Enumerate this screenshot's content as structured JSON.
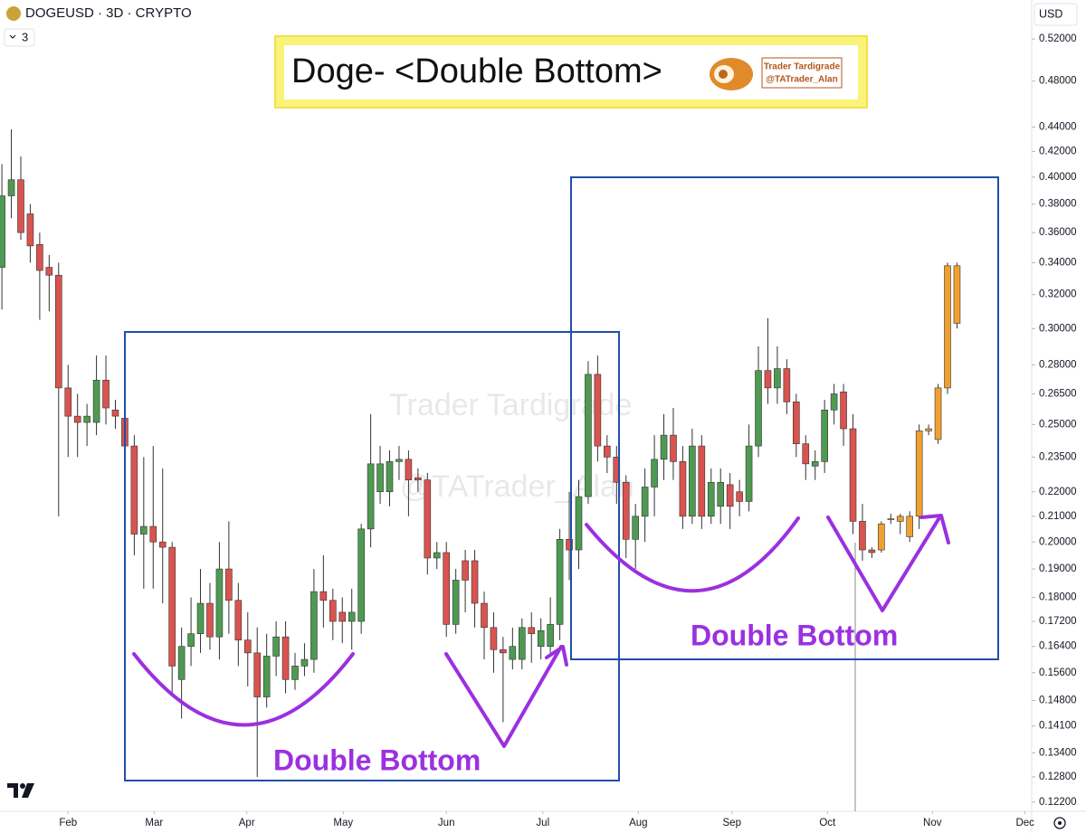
{
  "chart_data": {
    "type": "candlestick",
    "title": "DOGEUSD · 3D · CRYPTO",
    "interval": "3",
    "currency": "USD",
    "headline": "Doge- <Double Bottom>",
    "logo_name": "Trader Tardigrade",
    "logo_handle": "@TATrader_Alan",
    "watermark": [
      "Trader Tardigrade",
      "@TATrader_Alan"
    ],
    "pattern_labels": [
      "Double Bottom",
      "Double Bottom"
    ],
    "log_scale": true,
    "grid": false,
    "up_color": "#4e9a52",
    "down_color": "#d9534f",
    "candles": {
      "x": [
        0,
        1,
        2,
        3,
        4,
        5,
        6,
        7,
        8,
        9,
        10,
        11,
        12,
        13,
        14,
        15,
        16,
        17,
        18,
        19,
        20,
        21,
        22,
        23,
        24,
        25,
        26,
        27,
        28,
        29,
        30,
        31,
        32,
        33,
        34,
        35,
        36,
        37,
        38,
        39,
        40,
        41,
        42,
        43,
        44,
        45,
        46,
        47,
        48,
        49,
        50,
        51,
        52,
        53,
        54,
        55,
        56,
        57,
        58,
        59,
        60,
        61,
        62,
        63,
        64,
        65,
        66,
        67,
        68,
        69,
        70,
        71,
        72,
        73,
        74,
        75,
        76,
        77,
        78,
        79,
        80,
        81,
        82,
        83,
        84,
        85,
        86,
        87,
        88,
        89,
        90,
        91,
        92
      ],
      "open": [
        0.337,
        0.386,
        0.398,
        0.373,
        0.352,
        0.337,
        0.332,
        0.268,
        0.254,
        0.251,
        0.251,
        0.272,
        0.257,
        0.253,
        0.24,
        0.203,
        0.206,
        0.2,
        0.198,
        0.154,
        0.164,
        0.168,
        0.178,
        0.167,
        0.19,
        0.179,
        0.166,
        0.162,
        0.149,
        0.161,
        0.167,
        0.154,
        0.158,
        0.16,
        0.182,
        0.179,
        0.175,
        0.172,
        0.172,
        0.205,
        0.22,
        0.22,
        0.233,
        0.234,
        0.226,
        0.225,
        0.194,
        0.196,
        0.171,
        0.193,
        0.193,
        0.178,
        0.17,
        0.163,
        0.16,
        0.16,
        0.17,
        0.164,
        0.164,
        0.171,
        0.201,
        0.197,
        0.218,
        0.275,
        0.24,
        0.235,
        0.224,
        0.201,
        0.21,
        0.222,
        0.234,
        0.245,
        0.233,
        0.21,
        0.24,
        0.21,
        0.214,
        0.223,
        0.22,
        0.216,
        0.24,
        0.277,
        0.268,
        0.278,
        0.261,
        0.241,
        0.231,
        0.233,
        0.257,
        0.266,
        0.248,
        0.208,
        0.197
      ],
      "high": [
        0.41,
        0.438,
        0.416,
        0.38,
        0.36,
        0.345,
        0.34,
        0.28,
        0.265,
        0.26,
        0.285,
        0.285,
        0.262,
        0.258,
        0.245,
        0.235,
        0.24,
        0.23,
        0.2,
        0.17,
        0.18,
        0.19,
        0.185,
        0.2,
        0.208,
        0.185,
        0.175,
        0.17,
        0.168,
        0.172,
        0.172,
        0.162,
        0.165,
        0.19,
        0.195,
        0.183,
        0.18,
        0.183,
        0.207,
        0.255,
        0.24,
        0.238,
        0.24,
        0.238,
        0.23,
        0.228,
        0.2,
        0.2,
        0.19,
        0.197,
        0.197,
        0.182,
        0.175,
        0.167,
        0.17,
        0.173,
        0.175,
        0.173,
        0.18,
        0.205,
        0.22,
        0.225,
        0.282,
        0.285,
        0.245,
        0.24,
        0.227,
        0.215,
        0.23,
        0.245,
        0.255,
        0.258,
        0.24,
        0.248,
        0.245,
        0.23,
        0.23,
        0.228,
        0.225,
        0.25,
        0.29,
        0.306,
        0.29,
        0.283,
        0.265,
        0.245,
        0.238,
        0.262,
        0.27,
        0.27,
        0.255,
        0.215,
        0.198
      ],
      "low": [
        0.311,
        0.37,
        0.355,
        0.34,
        0.305,
        0.31,
        0.21,
        0.235,
        0.235,
        0.24,
        0.245,
        0.25,
        0.248,
        0.235,
        0.195,
        0.183,
        0.183,
        0.178,
        0.15,
        0.143,
        0.158,
        0.162,
        0.163,
        0.16,
        0.168,
        0.158,
        0.152,
        0.128,
        0.146,
        0.155,
        0.15,
        0.151,
        0.155,
        0.156,
        0.17,
        0.166,
        0.165,
        0.163,
        0.168,
        0.198,
        0.215,
        0.214,
        0.225,
        0.21,
        0.22,
        0.188,
        0.19,
        0.167,
        0.168,
        0.175,
        0.17,
        0.16,
        0.156,
        0.142,
        0.157,
        0.157,
        0.159,
        0.16,
        0.162,
        0.166,
        0.186,
        0.19,
        0.215,
        0.233,
        0.228,
        0.215,
        0.194,
        0.19,
        0.2,
        0.21,
        0.225,
        0.225,
        0.205,
        0.207,
        0.205,
        0.207,
        0.207,
        0.205,
        0.21,
        0.212,
        0.235,
        0.26,
        0.26,
        0.255,
        0.235,
        0.225,
        0.225,
        0.228,
        0.25,
        0.24,
        0.203,
        0.193,
        0.194
      ],
      "close": [
        0.386,
        0.398,
        0.36,
        0.351,
        0.335,
        0.332,
        0.268,
        0.254,
        0.251,
        0.254,
        0.272,
        0.258,
        0.254,
        0.24,
        0.203,
        0.206,
        0.2,
        0.198,
        0.158,
        0.164,
        0.168,
        0.178,
        0.167,
        0.19,
        0.179,
        0.166,
        0.162,
        0.149,
        0.161,
        0.167,
        0.154,
        0.158,
        0.16,
        0.182,
        0.179,
        0.172,
        0.172,
        0.175,
        0.205,
        0.232,
        0.232,
        0.233,
        0.234,
        0.225,
        0.225,
        0.194,
        0.196,
        0.171,
        0.186,
        0.186,
        0.178,
        0.17,
        0.163,
        0.162,
        0.164,
        0.17,
        0.168,
        0.169,
        0.171,
        0.201,
        0.197,
        0.218,
        0.275,
        0.24,
        0.235,
        0.224,
        0.201,
        0.21,
        0.222,
        0.234,
        0.245,
        0.233,
        0.21,
        0.24,
        0.21,
        0.224,
        0.224,
        0.214,
        0.216,
        0.24,
        0.277,
        0.268,
        0.278,
        0.261,
        0.241,
        0.232,
        0.233,
        0.257,
        0.265,
        0.248,
        0.208,
        0.197,
        0.196
      ]
    },
    "projection": {
      "color": "#f0a030",
      "x": [
        93,
        94,
        95,
        96,
        97,
        98,
        99,
        100,
        101
      ],
      "open": [
        0.207,
        0.209,
        0.208,
        0.202,
        0.21,
        0.247,
        0.243,
        0.268,
        0.338
      ],
      "high": [
        0.208,
        0.211,
        0.211,
        0.212,
        0.25,
        0.25,
        0.27,
        0.34,
        0.34
      ],
      "low": [
        0.196,
        0.207,
        0.203,
        0.2,
        0.205,
        0.245,
        0.241,
        0.265,
        0.3
      ],
      "close": [
        0.197,
        0.209,
        0.21,
        0.21,
        0.247,
        0.248,
        0.268,
        0.338,
        0.303
      ]
    },
    "xlim": [
      -0.2,
      108.9
    ],
    "xticks": [
      {
        "value": 7,
        "label": "Feb"
      },
      {
        "value": 16.1,
        "label": "Mar"
      },
      {
        "value": 25.9,
        "label": "Apr"
      },
      {
        "value": 36.1,
        "label": "May"
      },
      {
        "value": 47,
        "label": "Jun"
      },
      {
        "value": 57.2,
        "label": "Jul"
      },
      {
        "value": 67.3,
        "label": "Aug"
      },
      {
        "value": 77.2,
        "label": "Sep"
      },
      {
        "value": 87.3,
        "label": "Oct"
      },
      {
        "value": 98.4,
        "label": "Nov"
      },
      {
        "value": 108.2,
        "label": "Dec"
      }
    ],
    "ylim": [
      0.1199,
      0.56
    ],
    "yticks": [
      {
        "value": 0.52,
        "label": "0.52000"
      },
      {
        "value": 0.48,
        "label": "0.48000"
      },
      {
        "value": 0.44,
        "label": "0.44000"
      },
      {
        "value": 0.42,
        "label": "0.42000"
      },
      {
        "value": 0.4,
        "label": "0.40000"
      },
      {
        "value": 0.38,
        "label": "0.38000"
      },
      {
        "value": 0.36,
        "label": "0.36000"
      },
      {
        "value": 0.34,
        "label": "0.34000"
      },
      {
        "value": 0.32,
        "label": "0.32000"
      },
      {
        "value": 0.3,
        "label": "0.30000"
      },
      {
        "value": 0.28,
        "label": "0.28000"
      },
      {
        "value": 0.265,
        "label": "0.26500"
      },
      {
        "value": 0.25,
        "label": "0.25000"
      },
      {
        "value": 0.235,
        "label": "0.23500"
      },
      {
        "value": 0.22,
        "label": "0.22000"
      },
      {
        "value": 0.21,
        "label": "0.21000"
      },
      {
        "value": 0.2,
        "label": "0.20000"
      },
      {
        "value": 0.19,
        "label": "0.19000"
      },
      {
        "value": 0.18,
        "label": "0.18000"
      },
      {
        "value": 0.172,
        "label": "0.17200"
      },
      {
        "value": 0.164,
        "label": "0.16400"
      },
      {
        "value": 0.156,
        "label": "0.15600"
      },
      {
        "value": 0.148,
        "label": "0.14800"
      },
      {
        "value": 0.141,
        "label": "0.14100"
      },
      {
        "value": 0.134,
        "label": "0.13400"
      },
      {
        "value": 0.128,
        "label": "0.12800"
      },
      {
        "value": 0.122,
        "label": "0.12200"
      }
    ]
  }
}
